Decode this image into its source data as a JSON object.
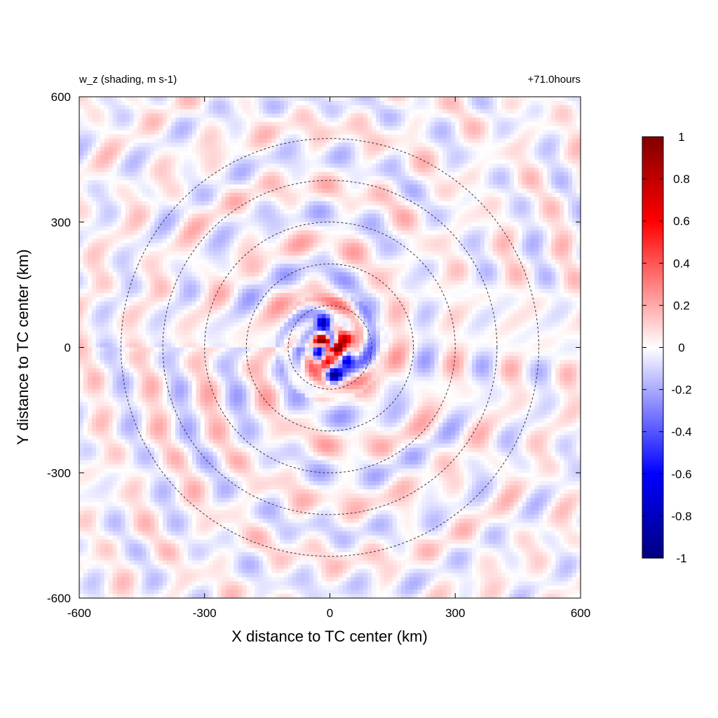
{
  "chart_data": {
    "type": "heatmap",
    "title_left": "w_z (shading, m s-1)",
    "title_right": "+71.0hours",
    "xlabel": "X distance to TC center (km)",
    "ylabel": "Y distance to TC center (km)",
    "xlim": [
      -600,
      600
    ],
    "ylim": [
      -600,
      600
    ],
    "xticks": [
      -600,
      -300,
      0,
      300,
      600
    ],
    "yticks": [
      -600,
      -300,
      0,
      300,
      600
    ],
    "xtick_labels": [
      "-600",
      "-300",
      "0",
      "300",
      "600"
    ],
    "ytick_labels": [
      "-600",
      "-300",
      "0",
      "300",
      "600"
    ],
    "range_rings_km": [
      100,
      200,
      300,
      400,
      500
    ],
    "ring_style": "dashed",
    "colorbar": {
      "min": -1,
      "max": 1,
      "ticks": [
        1,
        0.8,
        0.6,
        0.4,
        0.2,
        0,
        -0.2,
        -0.4,
        -0.6,
        -0.8,
        -1
      ],
      "tick_labels": [
        "1",
        "0.8",
        "0.6",
        "0.4",
        "0.2",
        "0",
        "-0.2",
        "-0.4",
        "-0.6",
        "-0.8",
        "-1"
      ],
      "colors": {
        "max": "#800000",
        "high": "#ff0000",
        "mid": "#ffffff",
        "low": "#0000ff",
        "min": "#000080"
      }
    },
    "field_features": [
      {
        "x": -20,
        "y": 20,
        "value": 0.9
      },
      {
        "x": 20,
        "y": -10,
        "value": 0.85
      },
      {
        "x": 40,
        "y": 20,
        "value": 0.7
      },
      {
        "x": -10,
        "y": -40,
        "value": 0.8
      },
      {
        "x": -15,
        "y": 60,
        "value": -0.95
      },
      {
        "x": 40,
        "y": -30,
        "value": -0.9
      },
      {
        "x": 10,
        "y": -70,
        "value": -0.85
      },
      {
        "x": -30,
        "y": -10,
        "value": -0.7
      }
    ]
  }
}
